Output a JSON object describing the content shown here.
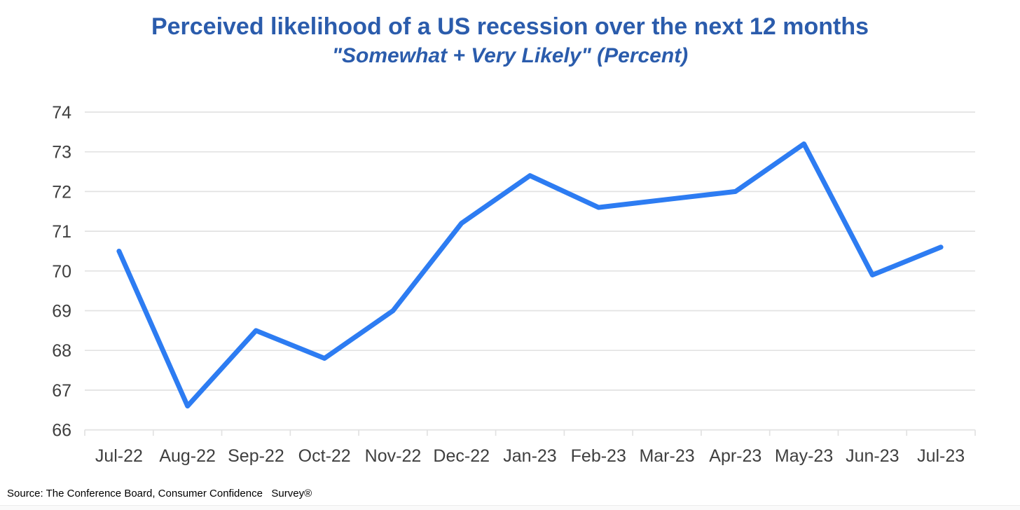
{
  "header": {
    "title": "Perceived likelihood of a US recession over the next 12 months",
    "subtitle": "\"Somewhat + Very Likely\" (Percent)"
  },
  "footer": {
    "source": "Source: The Conference Board, Consumer Confidence   Survey®"
  },
  "colors": {
    "title_text": "#2b5cac",
    "line": "#2d7cf2",
    "grid": "#e2e2e2",
    "axis_text": "#3f3f3f"
  },
  "chart_data": {
    "type": "line",
    "title": "Perceived likelihood of a US recession over the next 12 months",
    "subtitle": "\"Somewhat + Very Likely\" (Percent)",
    "categories": [
      "Jul-22",
      "Aug-22",
      "Sep-22",
      "Oct-22",
      "Nov-22",
      "Dec-22",
      "Jan-23",
      "Feb-23",
      "Mar-23",
      "Apr-23",
      "May-23",
      "Jun-23",
      "Jul-23"
    ],
    "series": [
      {
        "name": "Somewhat + Very Likely (Percent)",
        "values": [
          70.5,
          66.6,
          68.5,
          67.8,
          69.0,
          71.2,
          72.4,
          71.6,
          71.8,
          72.0,
          73.2,
          69.9,
          70.6
        ]
      }
    ],
    "xlabel": "",
    "ylabel": "",
    "ylim": [
      66,
      74
    ],
    "ytick_step": 1,
    "grid": "horizontal",
    "legend": "none",
    "markers": false
  }
}
